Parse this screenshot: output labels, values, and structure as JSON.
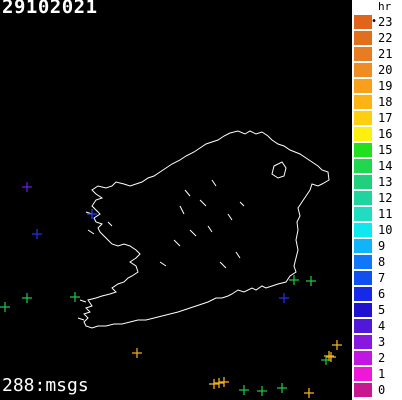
{
  "map": {
    "date": "29102021",
    "strike_count": "288:msgs"
  },
  "legend": {
    "unit": "hr",
    "current_marker": "•",
    "items": [
      {
        "hour": "23",
        "color": "#e0641a",
        "current": true
      },
      {
        "hour": "22",
        "color": "#e0701e"
      },
      {
        "hour": "21",
        "color": "#e87c22"
      },
      {
        "hour": "20",
        "color": "#f08c24"
      },
      {
        "hour": "19",
        "color": "#f8a01c"
      },
      {
        "hour": "18",
        "color": "#fcb414"
      },
      {
        "hour": "17",
        "color": "#fcd010"
      },
      {
        "hour": "16",
        "color": "#fcf010"
      },
      {
        "hour": "15",
        "color": "#20e020"
      },
      {
        "hour": "14",
        "color": "#20d850"
      },
      {
        "hour": "13",
        "color": "#20d07c"
      },
      {
        "hour": "12",
        "color": "#20d4a0"
      },
      {
        "hour": "11",
        "color": "#20dcc0"
      },
      {
        "hour": "10",
        "color": "#10e8f0"
      },
      {
        "hour": "9",
        "color": "#10b4f8"
      },
      {
        "hour": "8",
        "color": "#1078f8"
      },
      {
        "hour": "7",
        "color": "#1050f0"
      },
      {
        "hour": "6",
        "color": "#1828e8"
      },
      {
        "hour": "5",
        "color": "#2010d0"
      },
      {
        "hour": "4",
        "color": "#5018d8"
      },
      {
        "hour": "3",
        "color": "#8818e0"
      },
      {
        "hour": "2",
        "color": "#c018e0"
      },
      {
        "hour": "1",
        "color": "#f018d8"
      },
      {
        "hour": "0",
        "color": "#c81890"
      }
    ]
  },
  "strikes": [
    {
      "hour": 4,
      "color": "#6020d8"
    },
    {
      "hour": 7,
      "color": "#2040f0"
    },
    {
      "hour": 6,
      "color": "#2030e8"
    },
    {
      "hour": 14,
      "color": "#20c040"
    },
    {
      "hour": 14,
      "color": "#20c040"
    },
    {
      "hour": 14,
      "color": "#20c040"
    },
    {
      "hour": 14,
      "color": "#20c040"
    },
    {
      "hour": 14,
      "color": "#20c040"
    },
    {
      "hour": 6,
      "color": "#2030e8"
    },
    {
      "hour": 18,
      "color": "#f0a020"
    },
    {
      "hour": 18,
      "color": "#f0b020"
    },
    {
      "hour": 18,
      "color": "#f0b020"
    },
    {
      "hour": 18,
      "color": "#f0b020"
    },
    {
      "hour": 14,
      "color": "#20c040"
    },
    {
      "hour": 14,
      "color": "#20c040"
    },
    {
      "hour": 14,
      "color": "#20c040"
    },
    {
      "hour": 18,
      "color": "#f0b020"
    },
    {
      "hour": 18,
      "color": "#f0b020"
    },
    {
      "hour": 18,
      "color": "#f0b020"
    },
    {
      "hour": 14,
      "color": "#20c040"
    },
    {
      "hour": 18,
      "color": "#f0b020"
    }
  ]
}
